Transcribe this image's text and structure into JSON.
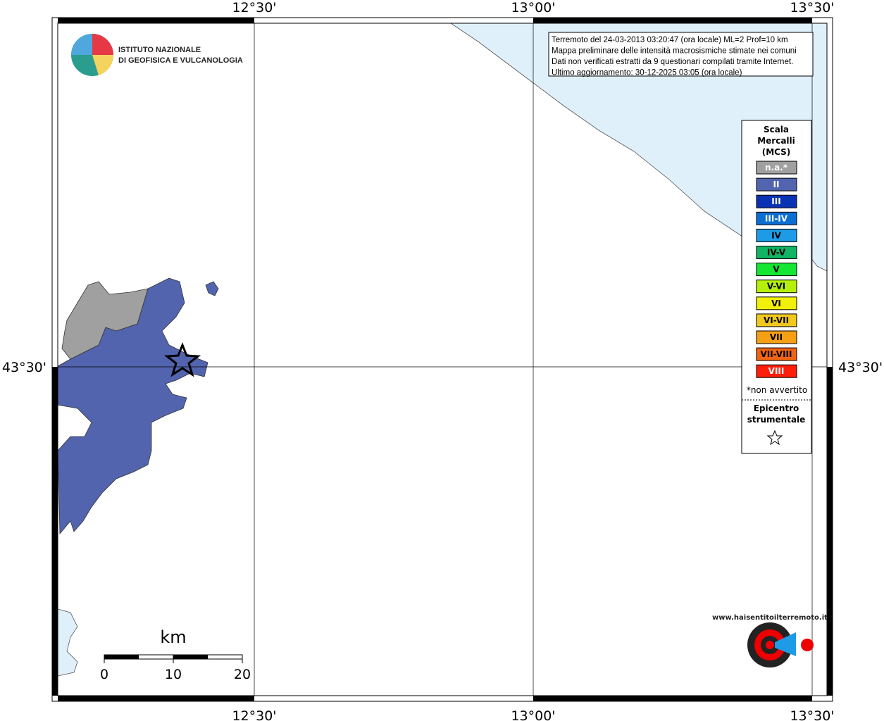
{
  "graticule": {
    "longitude_labels": [
      "12°30'",
      "13°00'",
      "13°30'"
    ],
    "latitude_labels": [
      "43°30'"
    ]
  },
  "logo": {
    "line1": "ISTITUTO NAZIONALE",
    "line2": "DI GEOFISICA E VULCANOLOGIA"
  },
  "info_box": [
    "Terremoto del 24-03-2013 03:20:47 (ora locale) ML=2 Prof=10 km",
    "Mappa preliminare delle intensità macrosismiche stimate nei comuni",
    "Dati non verificati estratti da 9 questionari compilati tramite Internet.",
    "Ultimo aggiornamento: 30-12-2025 03:05 (ora locale)"
  ],
  "legend": {
    "title": [
      "Scala",
      "Mercalli",
      "(MCS)"
    ],
    "classes": [
      {
        "label": "n.a.*",
        "color": "#a0a0a0"
      },
      {
        "label": "II",
        "color": "#5264ae"
      },
      {
        "label": "III",
        "color": "#0a32b4"
      },
      {
        "label": "III-IV",
        "color": "#0a6ed2"
      },
      {
        "label": "IV",
        "color": "#1e9be6"
      },
      {
        "label": "IV-V",
        "color": "#10b464"
      },
      {
        "label": "V",
        "color": "#14e632"
      },
      {
        "label": "V-VI",
        "color": "#b4f00a"
      },
      {
        "label": "VI",
        "color": "#f0f00a"
      },
      {
        "label": "VI-VII",
        "color": "#f0c81e"
      },
      {
        "label": "VII",
        "color": "#f5a014"
      },
      {
        "label": "VII-VIII",
        "color": "#f06414"
      },
      {
        "label": "VIII",
        "color": "#ff1e0a"
      }
    ],
    "note": "*non avvertito",
    "epicenter": [
      "Epicentro",
      "strumentale"
    ]
  },
  "scale_bar": {
    "unit": "km",
    "ticks": [
      0,
      10,
      20
    ]
  },
  "site_logo": "www.haisentitoilterremoto.it"
}
